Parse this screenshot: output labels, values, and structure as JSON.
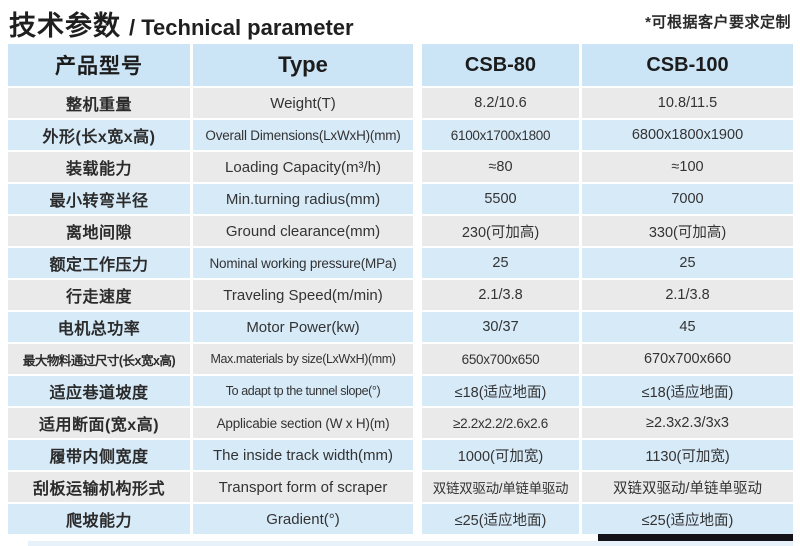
{
  "title": {
    "cn": "技术参数",
    "en": "/ Technical parameter"
  },
  "note": "*可根据客户要求定制",
  "colors": {
    "header_blue": "#cbe5f6",
    "row_blue": "#d7eaf8",
    "row_gray": "#eaeaea",
    "bar_dark": "#121218",
    "strip_blue": "#e7f1fa",
    "text_dark": "#1f1f1f",
    "text_body": "#333333"
  },
  "table": {
    "columns": [
      "产品型号",
      "Type",
      "CSB-80",
      "CSB-100"
    ],
    "rows": [
      {
        "cn": "整机重量",
        "en": "Weight(T)",
        "csb80": "8.2/10.6",
        "csb100": "10.8/11.5"
      },
      {
        "cn": "外形(长x宽x高)",
        "en": "Overall Dimensions(LxWxH)(mm)",
        "csb80": "6100x1700x1800",
        "csb100": "6800x1800x1900"
      },
      {
        "cn": "装载能力",
        "en": "Loading Capacity(m³/h)",
        "csb80": "≈80",
        "csb100": "≈100"
      },
      {
        "cn": "最小转弯半径",
        "en": "Min.turning radius(mm)",
        "csb80": "5500",
        "csb100": "7000"
      },
      {
        "cn": "离地间隙",
        "en": "Ground clearance(mm)",
        "csb80": "230(可加高)",
        "csb100": "330(可加高)"
      },
      {
        "cn": "额定工作压力",
        "en": "Nominal working pressure(MPa)",
        "csb80": "25",
        "csb100": "25"
      },
      {
        "cn": "行走速度",
        "en": "Traveling Speed(m/min)",
        "csb80": "2.1/3.8",
        "csb100": "2.1/3.8"
      },
      {
        "cn": "电机总功率",
        "en": "Motor Power(kw)",
        "csb80": "30/37",
        "csb100": "45"
      },
      {
        "cn": "最大物料通过尺寸(长x宽x高)",
        "en": "Max.materials by size(LxWxH)(mm)",
        "csb80": "650x700x650",
        "csb100": "670x700x660"
      },
      {
        "cn": "适应巷道坡度",
        "en": "To adapt tp the tunnel slope(°)",
        "csb80": "≤18(适应地面)",
        "csb100": "≤18(适应地面)"
      },
      {
        "cn": "适用断面(宽x高)",
        "en": "Applicabie section (W x H)(m)",
        "csb80": "≥2.2x2.2/2.6x2.6",
        "csb100": "≥2.3x2.3/3x3"
      },
      {
        "cn": "履带内侧宽度",
        "en": "The inside track width(mm)",
        "csb80": "1000(可加宽)",
        "csb100": "1130(可加宽)"
      },
      {
        "cn": "刮板运输机构形式",
        "en": "Transport form of scraper",
        "csb80": "双链双驱动/单链单驱动",
        "csb100": "双链双驱动/单链单驱动"
      },
      {
        "cn": "爬坡能力",
        "en": "Gradient(°)",
        "csb80": "≤25(适应地面)",
        "csb100": "≤25(适应地面)"
      }
    ]
  }
}
